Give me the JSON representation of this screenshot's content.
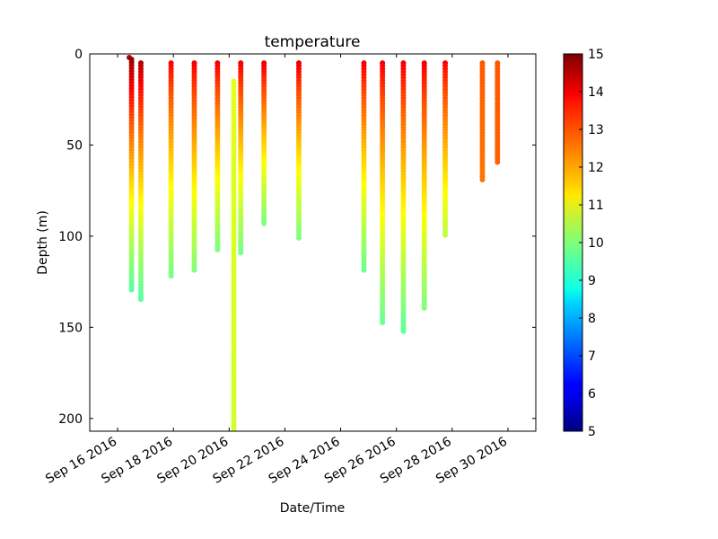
{
  "chart_data": {
    "type": "scatter",
    "title": "temperature",
    "xlabel": "Date/Time",
    "ylabel": "Depth (m)",
    "x_tick_labels": [
      "Sep 16 2016",
      "Sep 18 2016",
      "Sep 20 2016",
      "Sep 22 2016",
      "Sep 24 2016",
      "Sep 26 2016",
      "Sep 28 2016",
      "Sep 30 2016"
    ],
    "y_ticks": [
      0,
      50,
      100,
      150,
      200
    ],
    "y_tick_labels": [
      "0",
      "50",
      "100",
      "150",
      "200"
    ],
    "xlim": [
      "2016-09-15",
      "2016-10-01"
    ],
    "ylim": [
      207,
      0
    ],
    "y_inverted": true,
    "colorbar": {
      "colormap": "jet",
      "min": 5,
      "max": 15,
      "ticks": [
        5,
        6,
        7,
        8,
        9,
        10,
        11,
        12,
        13,
        14,
        15
      ],
      "tick_labels": [
        "5",
        "6",
        "7",
        "8",
        "9",
        "10",
        "11",
        "12",
        "13",
        "14",
        "15"
      ]
    },
    "profiles": [
      {
        "date": "2016-09-16T10:00",
        "min_depth": 2,
        "max_depth": 3,
        "surface_temp": 14.5,
        "deep_temp": 13.0
      },
      {
        "date": "2016-09-16T12:00",
        "min_depth": 3,
        "max_depth": 130,
        "surface_temp": 14.8,
        "deep_temp": 9.6
      },
      {
        "date": "2016-09-16T20:00",
        "min_depth": 5,
        "max_depth": 135,
        "surface_temp": 14.5,
        "deep_temp": 9.6
      },
      {
        "date": "2016-09-17T22:00",
        "min_depth": 5,
        "max_depth": 122,
        "surface_temp": 13.8,
        "deep_temp": 9.9
      },
      {
        "date": "2016-09-18T18:00",
        "min_depth": 5,
        "max_depth": 120,
        "surface_temp": 13.9,
        "deep_temp": 10.0
      },
      {
        "date": "2016-09-19T14:00",
        "min_depth": 5,
        "max_depth": 108,
        "surface_temp": 13.9,
        "deep_temp": 10.0
      },
      {
        "date": "2016-09-20T04:00",
        "min_depth": 15,
        "max_depth": 207,
        "surface_temp": 11.0,
        "deep_temp": 10.8
      },
      {
        "date": "2016-09-20T10:00",
        "min_depth": 5,
        "max_depth": 110,
        "surface_temp": 13.9,
        "deep_temp": 9.9
      },
      {
        "date": "2016-09-21T06:00",
        "min_depth": 5,
        "max_depth": 93,
        "surface_temp": 14.0,
        "deep_temp": 10.0
      },
      {
        "date": "2016-09-22T12:00",
        "min_depth": 5,
        "max_depth": 101,
        "surface_temp": 14.0,
        "deep_temp": 10.0
      },
      {
        "date": "2016-09-24T20:00",
        "min_depth": 5,
        "max_depth": 120,
        "surface_temp": 13.9,
        "deep_temp": 9.8
      },
      {
        "date": "2016-09-25T12:00",
        "min_depth": 5,
        "max_depth": 148,
        "surface_temp": 13.9,
        "deep_temp": 9.8
      },
      {
        "date": "2016-09-26T06:00",
        "min_depth": 5,
        "max_depth": 153,
        "surface_temp": 13.9,
        "deep_temp": 9.7
      },
      {
        "date": "2016-09-27T00:00",
        "min_depth": 5,
        "max_depth": 140,
        "surface_temp": 13.9,
        "deep_temp": 10.0
      },
      {
        "date": "2016-09-27T18:00",
        "min_depth": 5,
        "max_depth": 100,
        "surface_temp": 13.8,
        "deep_temp": 10.6
      },
      {
        "date": "2016-09-29T02:00",
        "min_depth": 5,
        "max_depth": 70,
        "surface_temp": 12.9,
        "deep_temp": 12.6
      },
      {
        "date": "2016-09-29T15:00",
        "min_depth": 5,
        "max_depth": 60,
        "surface_temp": 12.9,
        "deep_temp": 12.8
      }
    ]
  }
}
